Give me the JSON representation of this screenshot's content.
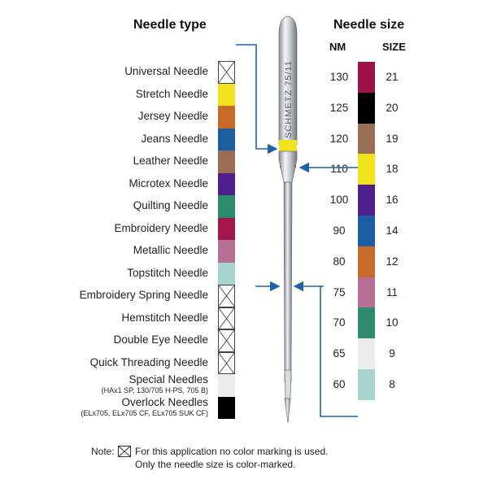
{
  "headings": {
    "needle_type": "Needle type",
    "needle_size": "Needle size",
    "nm": "NM",
    "size": "SIZE"
  },
  "needle_types": [
    {
      "label": "Universal Needle",
      "sub": "",
      "color": "none"
    },
    {
      "label": "Stretch Needle",
      "sub": "",
      "color": "#f2e21e"
    },
    {
      "label": "Jersey Needle",
      "sub": "",
      "color": "#c86a2a"
    },
    {
      "label": "Jeans Needle",
      "sub": "",
      "color": "#1c5fa0"
    },
    {
      "label": "Leather Needle",
      "sub": "",
      "color": "#9a6e55"
    },
    {
      "label": "Microtex Needle",
      "sub": "",
      "color": "#4f1f8e"
    },
    {
      "label": "Quilting Needle",
      "sub": "",
      "color": "#2e8a6e"
    },
    {
      "label": "Embroidery Needle",
      "sub": "",
      "color": "#a2164c"
    },
    {
      "label": "Metallic Needle",
      "sub": "",
      "color": "#b86f96"
    },
    {
      "label": "Topstitch Needle",
      "sub": "",
      "color": "#a8d4cf"
    },
    {
      "label": "Embroidery Spring Needle",
      "sub": "",
      "color": "none"
    },
    {
      "label": "Hemstitch Needle",
      "sub": "",
      "color": "none"
    },
    {
      "label": "Double Eye Needle",
      "sub": "",
      "color": "none"
    },
    {
      "label": "Quick Threading Needle",
      "sub": "",
      "color": "none"
    },
    {
      "label": "Special Needles",
      "sub": "(HAx1 SP, 130/705 H-PS, 705 B)",
      "color": "#ececec"
    },
    {
      "label": "Overlock Needles",
      "sub": "(ELx705, ELx705 CF, ELx705 SUK CF)",
      "color": "#000000"
    }
  ],
  "needle_sizes": [
    {
      "nm": "130",
      "size": "21",
      "color": "#9c1247"
    },
    {
      "nm": "125",
      "size": "20",
      "color": "#000000"
    },
    {
      "nm": "120",
      "size": "19",
      "color": "#9a6e55"
    },
    {
      "nm": "110",
      "size": "18",
      "color": "#f2e21e"
    },
    {
      "nm": "100",
      "size": "16",
      "color": "#4f1f8e"
    },
    {
      "nm": "90",
      "size": "14",
      "color": "#1c5fa0"
    },
    {
      "nm": "80",
      "size": "12",
      "color": "#c86a2a"
    },
    {
      "nm": "75",
      "size": "11",
      "color": "#b86f96"
    },
    {
      "nm": "70",
      "size": "10",
      "color": "#2e8a6e"
    },
    {
      "nm": "65",
      "size": "9",
      "color": "#ececec"
    },
    {
      "nm": "60",
      "size": "8",
      "color": "#a8d4cf"
    }
  ],
  "needle_shank_text": "SCHMETZ 75/11",
  "note": {
    "prefix": "Note:",
    "line1": "For this application no color marking is used.",
    "line2": "Only the needle size is color-marked."
  },
  "colors": {
    "arrow": "#1d63a8",
    "band_yellow": "#f2e21e",
    "band_purple": "#a2164c"
  }
}
